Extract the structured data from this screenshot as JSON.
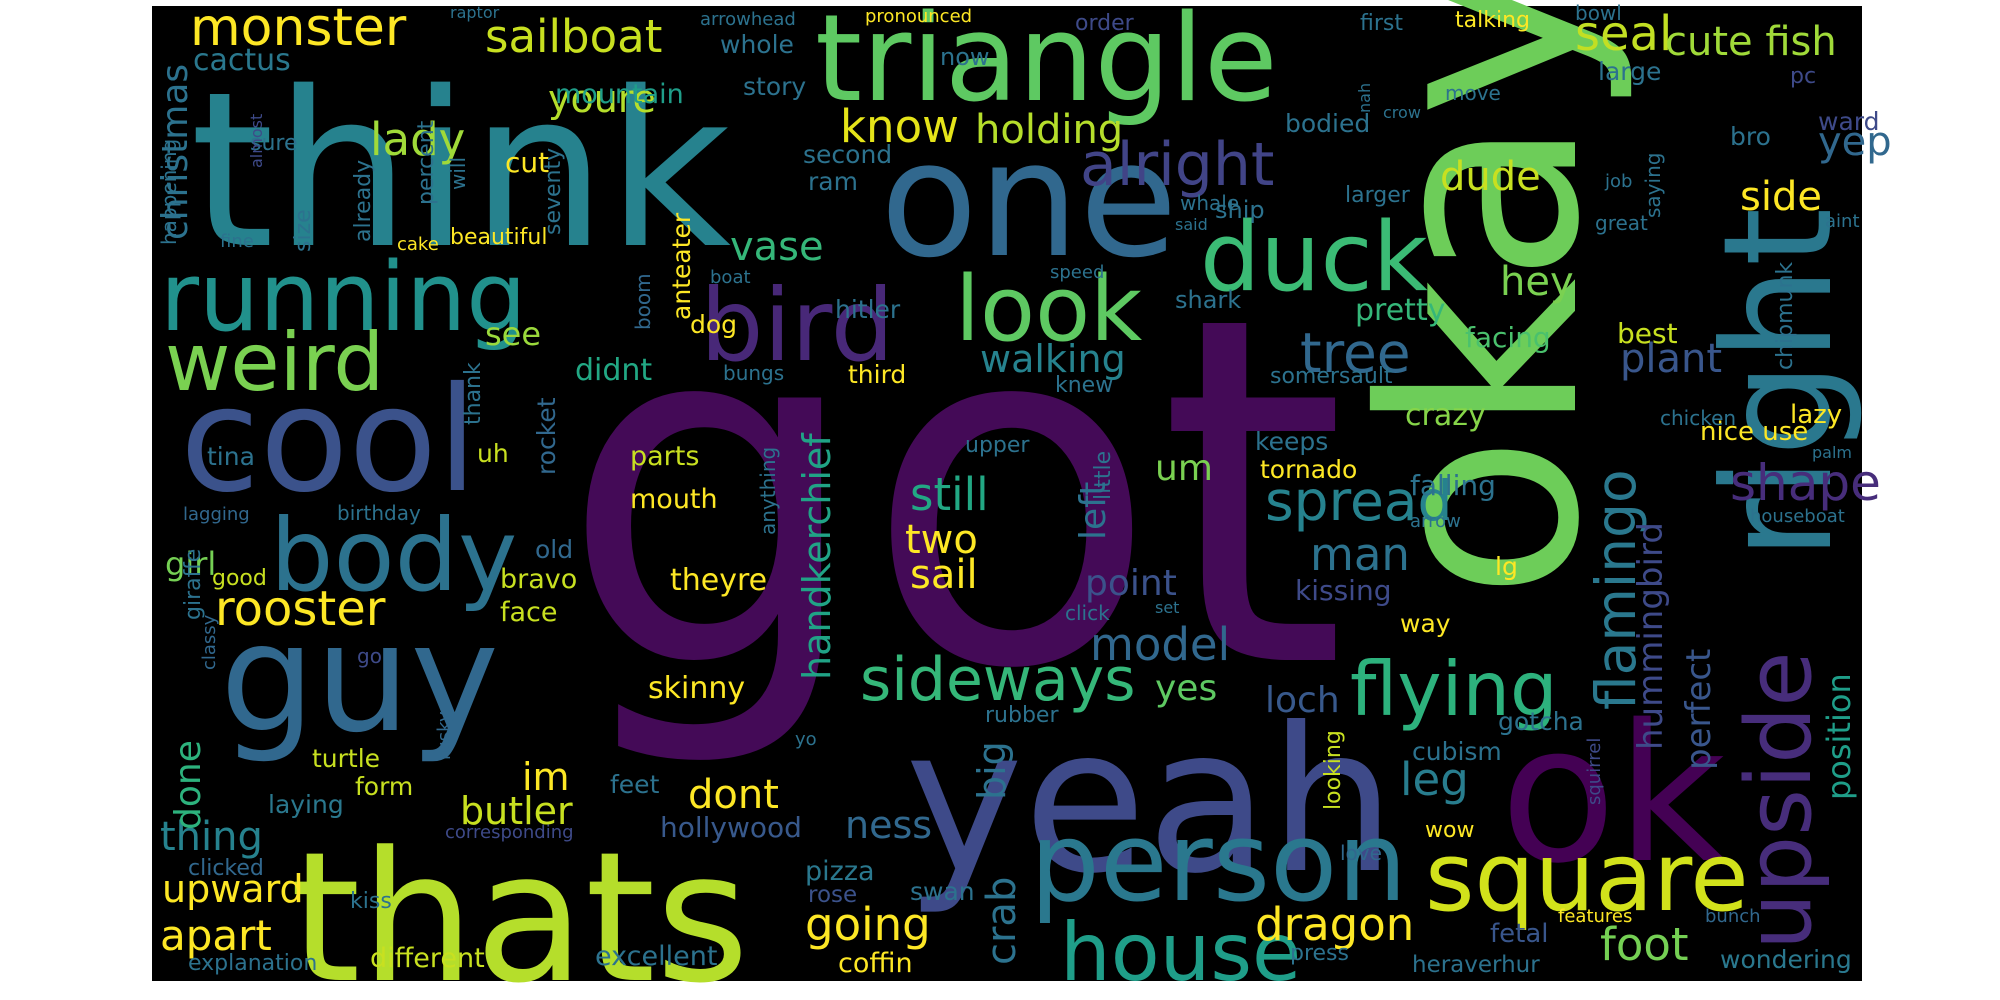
{
  "image": {
    "type": "word cloud",
    "background_color": "#000000",
    "page_background": "#ffffff",
    "palette": "viridis"
  },
  "words": [
    {
      "text": "got",
      "color": "#440a57"
    },
    {
      "text": "okay",
      "color": "#6dcd59"
    },
    {
      "text": "think",
      "color": "#26828e"
    },
    {
      "text": "yeah",
      "color": "#3e4a89"
    },
    {
      "text": "thats",
      "color": "#b5de2b"
    },
    {
      "text": "right",
      "color": "#2a788e"
    },
    {
      "text": "one",
      "color": "#31688e"
    },
    {
      "text": "ok",
      "color": "#440154"
    },
    {
      "text": "cool",
      "color": "#3b528b"
    },
    {
      "text": "guy",
      "color": "#31688e"
    },
    {
      "text": "triangle",
      "color": "#5ec962"
    },
    {
      "text": "person",
      "color": "#2a788e"
    },
    {
      "text": "square",
      "color": "#d2e21b"
    },
    {
      "text": "upside",
      "color": "#472d7b"
    },
    {
      "text": "running",
      "color": "#21918c"
    },
    {
      "text": "body",
      "color": "#2c728e"
    },
    {
      "text": "bird",
      "color": "#482878"
    },
    {
      "text": "duck",
      "color": "#3bbb75"
    },
    {
      "text": "look",
      "color": "#5ec962"
    },
    {
      "text": "weird",
      "color": "#7ad151"
    },
    {
      "text": "house",
      "color": "#1f9e89"
    },
    {
      "text": "flying",
      "color": "#2db27d"
    },
    {
      "text": "monster",
      "color": "#fde725"
    },
    {
      "text": "sailboat",
      "color": "#c8e020"
    },
    {
      "text": "alright",
      "color": "#414487"
    },
    {
      "text": "sideways",
      "color": "#35b779"
    },
    {
      "text": "rooster",
      "color": "#fde725"
    },
    {
      "text": "lady",
      "color": "#a0da39"
    },
    {
      "text": "youre",
      "color": "#b5de2b"
    },
    {
      "text": "christmas",
      "color": "#2c728e"
    },
    {
      "text": "cactus",
      "color": "#2a788e"
    },
    {
      "text": "mountain",
      "color": "#1f9e89"
    },
    {
      "text": "know",
      "color": "#e5e419"
    },
    {
      "text": "holding",
      "color": "#b5de2b"
    },
    {
      "text": "tree",
      "color": "#31688e"
    },
    {
      "text": "flamingo",
      "color": "#2a788e"
    },
    {
      "text": "spread",
      "color": "#26828e"
    },
    {
      "text": "seal",
      "color": "#c2df23"
    },
    {
      "text": "cute fish",
      "color": "#a0da39"
    },
    {
      "text": "dude",
      "color": "#c8e020"
    },
    {
      "text": "side",
      "color": "#fde725"
    },
    {
      "text": "yep",
      "color": "#31688e"
    },
    {
      "text": "hey",
      "color": "#7ad151"
    },
    {
      "text": "plant",
      "color": "#39568c"
    },
    {
      "text": "shape",
      "color": "#472d7b"
    },
    {
      "text": "vase",
      "color": "#35b779"
    },
    {
      "text": "walking",
      "color": "#26828e"
    },
    {
      "text": "handkerchief",
      "color": "#20a386"
    },
    {
      "text": "hummingbird",
      "color": "#3e4a89"
    },
    {
      "text": "still",
      "color": "#22a884"
    },
    {
      "text": "two",
      "color": "#fde725"
    },
    {
      "text": "sail",
      "color": "#fde725"
    },
    {
      "text": "model",
      "color": "#31688e"
    },
    {
      "text": "man",
      "color": "#2c728e"
    },
    {
      "text": "leg",
      "color": "#287d8e"
    },
    {
      "text": "dragon",
      "color": "#fde725"
    },
    {
      "text": "foot",
      "color": "#75d054"
    },
    {
      "text": "going",
      "color": "#fde725"
    },
    {
      "text": "apart",
      "color": "#fde725"
    },
    {
      "text": "upward",
      "color": "#fde725"
    },
    {
      "text": "thing",
      "color": "#26828e"
    },
    {
      "text": "butler",
      "color": "#c8e020"
    },
    {
      "text": "done",
      "color": "#2db27d"
    },
    {
      "text": "dont",
      "color": "#fde725"
    },
    {
      "text": "im",
      "color": "#fde725"
    },
    {
      "text": "big",
      "color": "#2c728e"
    },
    {
      "text": "crab",
      "color": "#2c728e"
    },
    {
      "text": "ness",
      "color": "#31688e"
    },
    {
      "text": "yes",
      "color": "#5ec962"
    },
    {
      "text": "loch",
      "color": "#38598c"
    },
    {
      "text": "point",
      "color": "#3b528b"
    },
    {
      "text": "left",
      "color": "#2c728e"
    },
    {
      "text": "um",
      "color": "#7ad151"
    },
    {
      "text": "girl",
      "color": "#75d054"
    },
    {
      "text": "see",
      "color": "#9bd93c"
    },
    {
      "text": "didnt",
      "color": "#22a884"
    },
    {
      "text": "perfect",
      "color": "#39568c"
    },
    {
      "text": "position",
      "color": "#1f9e89"
    },
    {
      "text": "pretty",
      "color": "#35b779"
    },
    {
      "text": "crazy",
      "color": "#86d549"
    },
    {
      "text": "kissing",
      "color": "#3e4a89"
    },
    {
      "text": "falling",
      "color": "#2c728e"
    },
    {
      "text": "facing",
      "color": "#4ac16d"
    },
    {
      "text": "best",
      "color": "#c8e020"
    },
    {
      "text": "theyre",
      "color": "#fde725"
    },
    {
      "text": "skinny",
      "color": "#fde725"
    },
    {
      "text": "excellent",
      "color": "#2c728e"
    },
    {
      "text": "coffin",
      "color": "#fde725"
    },
    {
      "text": "different",
      "color": "#c8e020"
    },
    {
      "text": "explanation",
      "color": "#2c728e"
    },
    {
      "text": "wondering",
      "color": "#2a788e"
    },
    {
      "text": "heraverhur",
      "color": "#2c728e"
    },
    {
      "text": "fetal",
      "color": "#39568c"
    },
    {
      "text": "press",
      "color": "#2c728e"
    },
    {
      "text": "hollywood",
      "color": "#38598c"
    },
    {
      "text": "pizza",
      "color": "#2a788e"
    },
    {
      "text": "rose",
      "color": "#3b528b"
    },
    {
      "text": "swan",
      "color": "#2c728e"
    },
    {
      "text": "parts",
      "color": "#c8e020"
    },
    {
      "text": "mouth",
      "color": "#fde725"
    },
    {
      "text": "bravo",
      "color": "#c8e020"
    },
    {
      "text": "face",
      "color": "#c8e020"
    },
    {
      "text": "old",
      "color": "#31688e"
    },
    {
      "text": "uh",
      "color": "#c8e020"
    },
    {
      "text": "tina",
      "color": "#2c728e"
    },
    {
      "text": "good",
      "color": "#c8e020"
    },
    {
      "text": "turtle",
      "color": "#c8e020"
    },
    {
      "text": "form",
      "color": "#c8e020"
    },
    {
      "text": "laying",
      "color": "#2a788e"
    },
    {
      "text": "feet",
      "color": "#2c728e"
    },
    {
      "text": "kiss",
      "color": "#2c728e"
    },
    {
      "text": "clicked",
      "color": "#31688e"
    },
    {
      "text": "giraffe",
      "color": "#2c728e"
    },
    {
      "text": "classy",
      "color": "#31688e"
    },
    {
      "text": "go",
      "color": "#3e4a89"
    },
    {
      "text": "birthday",
      "color": "#2c728e"
    },
    {
      "text": "lagging",
      "color": "#31688e"
    },
    {
      "text": "cubism",
      "color": "#2c728e"
    },
    {
      "text": "gotcha",
      "color": "#2c728e"
    },
    {
      "text": "looking",
      "color": "#c8e020"
    },
    {
      "text": "love",
      "color": "#31688e"
    },
    {
      "text": "wow",
      "color": "#fde725"
    },
    {
      "text": "way",
      "color": "#fde725"
    },
    {
      "text": "lg",
      "color": "#fde725"
    },
    {
      "text": "tornado",
      "color": "#fde725"
    },
    {
      "text": "keeps",
      "color": "#2c728e"
    },
    {
      "text": "upper",
      "color": "#2c728e"
    },
    {
      "text": "little",
      "color": "#2c728e"
    },
    {
      "text": "anything",
      "color": "#2c728e"
    },
    {
      "text": "rocket",
      "color": "#31688e"
    },
    {
      "text": "thank",
      "color": "#2c728e"
    },
    {
      "text": "rubber",
      "color": "#2c728e"
    },
    {
      "text": "rusky",
      "color": "#31688e"
    },
    {
      "text": "yo",
      "color": "#2c728e"
    },
    {
      "text": "squirrel",
      "color": "#3e4a89"
    },
    {
      "text": "bunch",
      "color": "#31688e"
    },
    {
      "text": "features",
      "color": "#fde725"
    },
    {
      "text": "corresponding",
      "color": "#3e4a89"
    },
    {
      "text": "click",
      "color": "#2c728e"
    },
    {
      "text": "set",
      "color": "#2c728e"
    },
    {
      "text": "arrow",
      "color": "#2c728e"
    },
    {
      "text": "houseboat",
      "color": "#2c728e"
    },
    {
      "text": "palm",
      "color": "#2c728e"
    },
    {
      "text": "nice use",
      "color": "#fde725"
    },
    {
      "text": "lazy",
      "color": "#fde725"
    },
    {
      "text": "chicken",
      "color": "#2c728e"
    },
    {
      "text": "chipmunk",
      "color": "#2c728e"
    },
    {
      "text": "somersault",
      "color": "#2c728e"
    },
    {
      "text": "knew",
      "color": "#2c728e"
    },
    {
      "text": "third",
      "color": "#fde725"
    },
    {
      "text": "bungs",
      "color": "#2c728e"
    },
    {
      "text": "dog",
      "color": "#fde725"
    },
    {
      "text": "anteater",
      "color": "#fde725"
    },
    {
      "text": "boom",
      "color": "#31688e"
    },
    {
      "text": "hitler",
      "color": "#2c728e"
    },
    {
      "text": "shark",
      "color": "#2c728e"
    },
    {
      "text": "speed",
      "color": "#2c728e"
    },
    {
      "text": "boat",
      "color": "#2c728e"
    },
    {
      "text": "aint",
      "color": "#2c728e"
    },
    {
      "text": "great",
      "color": "#2c728e"
    },
    {
      "text": "job",
      "color": "#2c728e"
    },
    {
      "text": "saying",
      "color": "#2c728e"
    },
    {
      "text": "larger",
      "color": "#2c728e"
    },
    {
      "text": "whale",
      "color": "#2c728e"
    },
    {
      "text": "ship",
      "color": "#2c728e"
    },
    {
      "text": "said",
      "color": "#2c728e"
    },
    {
      "text": "bodied",
      "color": "#2c728e"
    },
    {
      "text": "crow",
      "color": "#2c728e"
    },
    {
      "text": "move",
      "color": "#2c728e"
    },
    {
      "text": "nah",
      "color": "#2c728e"
    },
    {
      "text": "bro",
      "color": "#2c728e"
    },
    {
      "text": "ward",
      "color": "#3e4a89"
    },
    {
      "text": "pc",
      "color": "#3e4a89"
    },
    {
      "text": "large",
      "color": "#2c728e"
    },
    {
      "text": "second",
      "color": "#2c728e"
    },
    {
      "text": "ram",
      "color": "#2c728e"
    },
    {
      "text": "story",
      "color": "#2c728e"
    },
    {
      "text": "now",
      "color": "#2c728e"
    },
    {
      "text": "whole",
      "color": "#2c728e"
    },
    {
      "text": "order",
      "color": "#3e4a89"
    },
    {
      "text": "first",
      "color": "#2c728e"
    },
    {
      "text": "talking",
      "color": "#fde725"
    },
    {
      "text": "bowl",
      "color": "#2c728e"
    },
    {
      "text": "pronounced",
      "color": "#fde725"
    },
    {
      "text": "arrowhead",
      "color": "#2c728e"
    },
    {
      "text": "raptor",
      "color": "#2c728e"
    },
    {
      "text": "cut",
      "color": "#fde725"
    },
    {
      "text": "will",
      "color": "#2c728e"
    },
    {
      "text": "percent",
      "color": "#2c728e"
    },
    {
      "text": "seventy",
      "color": "#2c728e"
    },
    {
      "text": "already",
      "color": "#2c728e"
    },
    {
      "text": "size",
      "color": "#2c728e"
    },
    {
      "text": "happening",
      "color": "#2c728e"
    },
    {
      "text": "sure",
      "color": "#2c728e"
    },
    {
      "text": "almost",
      "color": "#3e4a89"
    },
    {
      "text": "fine",
      "color": "#2c728e"
    },
    {
      "text": "cake",
      "color": "#fde725"
    },
    {
      "text": "beautiful",
      "color": "#fde725"
    }
  ]
}
